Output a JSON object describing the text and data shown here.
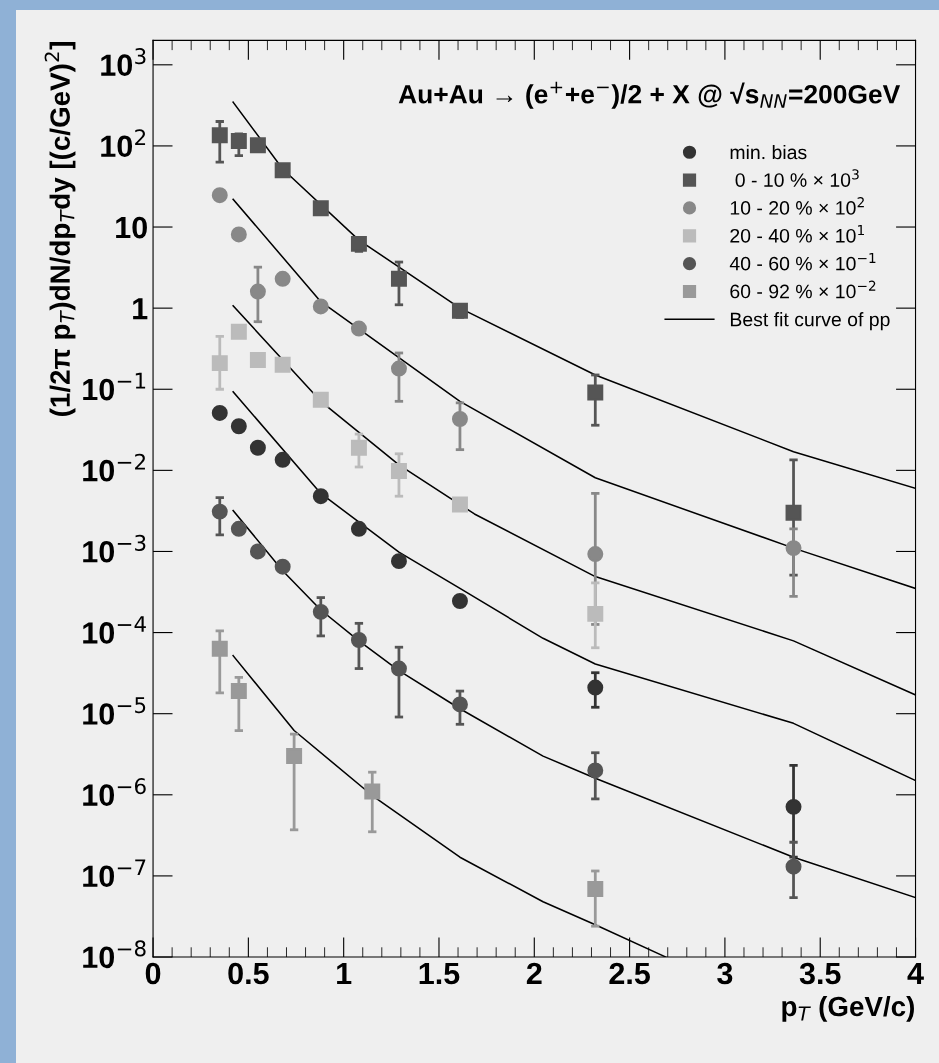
{
  "chart_data": {
    "type": "scatter",
    "title": "Au+Au → (e$^{+}$+e$^{−}$)/2 + X @ √s$_{NN}$=200GeV",
    "xlabel": "p$_{T}$ (GeV/c)",
    "ylabel": "(1/2π p$_{T}$)dN/dp$_{T}$dy [(c/GeV)$^{2}$]",
    "log": "y",
    "grid": false,
    "legend": "top right",
    "xlim": [
      0,
      4
    ],
    "xticks": [
      0,
      0.5,
      1,
      1.5,
      2,
      2.5,
      3,
      3.5,
      4
    ],
    "ylim": [
      1e-08,
      2000
    ],
    "yticks": [
      {
        "value": 1e-08,
        "label": "10$^{−8}$"
      },
      {
        "value": 1e-07,
        "label": "10$^{−7}$"
      },
      {
        "value": 1e-06,
        "label": "10$^{−6}$"
      },
      {
        "value": 1e-05,
        "label": "10$^{−5}$"
      },
      {
        "value": 0.0001,
        "label": "10$^{−4}$"
      },
      {
        "value": 0.001,
        "label": "10$^{−3}$"
      },
      {
        "value": 0.01,
        "label": "10$^{−2}$"
      },
      {
        "value": 0.1,
        "label": "10$^{−1}$"
      },
      1,
      10,
      {
        "value": 100,
        "label": "10$^{2}$"
      },
      {
        "value": 1000,
        "label": "10$^{3}$"
      }
    ],
    "series": [
      {
        "name": "min. bias",
        "color": "#333333",
        "marker": "circle",
        "x": [
          0.35,
          0.45,
          0.55,
          0.68,
          0.88,
          1.08,
          1.29,
          1.61,
          2.32,
          3.36
        ],
        "values": [
          0.051,
          0.035,
          0.019,
          0.0135,
          0.0048,
          0.0019,
          0.00076,
          0.000245,
          2.1e-05,
          7.1e-07
        ],
        "errors": [
          null,
          null,
          null,
          null,
          null,
          null,
          null,
          null,
          [
            1.2e-05,
            3.2e-05
          ],
          [
            1.7e-07,
            2.3e-06
          ]
        ]
      },
      {
        "name": " 0 - 10 % × 10$^{3}$",
        "color": "#555555",
        "marker": "square",
        "x": [
          0.35,
          0.45,
          0.55,
          0.68,
          0.88,
          1.08,
          1.29,
          1.61,
          2.32,
          3.36
        ],
        "values": [
          135,
          115,
          102,
          50,
          17,
          6.2,
          2.3,
          0.93,
          0.091,
          0.003
        ],
        "errors": [
          [
            63,
            200
          ],
          [
            76,
            141
          ],
          null,
          null,
          null,
          [
            5.0,
            7.3
          ],
          [
            1.1,
            3.7
          ],
          [
            0.77,
            1.1
          ],
          [
            0.036,
            0.15
          ],
          [
            0.00051,
            0.0135
          ]
        ]
      },
      {
        "name": "10 - 20 % × 10$^{2}$",
        "color": "#888888",
        "marker": "circle",
        "x": [
          0.35,
          0.45,
          0.55,
          0.68,
          0.88,
          1.08,
          1.29,
          1.61,
          2.32,
          3.36
        ],
        "values": [
          24.7,
          8.1,
          1.6,
          2.3,
          1.05,
          0.56,
          0.18,
          0.043,
          0.00093,
          0.0011
        ],
        "errors": [
          null,
          null,
          [
            0.68,
            3.2
          ],
          null,
          null,
          null,
          [
            0.071,
            0.28
          ],
          [
            0.018,
            0.068
          ],
          [
            0.000126,
            0.0052
          ],
          [
            0.00028,
            0.0019
          ]
        ]
      },
      {
        "name": "20 - 40 % × 10$^{1}$",
        "color": "#bbbbbb",
        "marker": "square",
        "x": [
          0.35,
          0.45,
          0.55,
          0.68,
          0.88,
          1.08,
          1.29,
          1.61,
          2.32
        ],
        "values": [
          0.21,
          0.51,
          0.23,
          0.2,
          0.074,
          0.019,
          0.0098,
          0.0038,
          0.00017
        ],
        "errors": [
          [
            0.1,
            0.45
          ],
          null,
          null,
          null,
          null,
          [
            0.011,
            0.028
          ],
          [
            0.0048,
            0.016
          ],
          null,
          [
            6.5e-05,
            0.00041
          ]
        ]
      },
      {
        "name": "40 - 60 % × 10$^{−1}$",
        "color": "#555555",
        "marker": "circle",
        "x": [
          0.35,
          0.45,
          0.55,
          0.68,
          0.88,
          1.08,
          1.29,
          1.61,
          2.32,
          3.36
        ],
        "values": [
          0.0031,
          0.0019,
          0.001,
          0.00065,
          0.00018,
          8.1e-05,
          3.6e-05,
          1.3e-05,
          2e-06,
          1.3e-07
        ],
        "errors": [
          [
            0.0016,
            0.0046
          ],
          null,
          null,
          null,
          [
            9.1e-05,
            0.00027
          ],
          [
            3.6e-05,
            0.00013
          ],
          [
            9.1e-06,
            6.6e-05
          ],
          [
            7.4e-06,
            1.9e-05
          ],
          [
            8.9e-07,
            3.3e-06
          ],
          [
            5.4e-08,
            2.6e-07
          ]
        ]
      },
      {
        "name": "60 - 92 % × 10$^{−2}$",
        "color": "#999999",
        "marker": "square",
        "x": [
          0.35,
          0.45,
          0.74,
          1.15,
          2.32
        ],
        "values": [
          6.3e-05,
          1.9e-05,
          3e-06,
          1.1e-06,
          6.9e-08
        ],
        "errors": [
          [
            1.8e-05,
            0.000105
          ],
          [
            6.2e-06,
            2.8e-05
          ],
          [
            3.7e-07,
            5.6e-06
          ],
          [
            3.5e-07,
            1.9e-06
          ],
          [
            2.4e-08,
            1.15e-07
          ]
        ]
      },
      {
        "name": "Best fit curve of pp",
        "type": "line",
        "color": "#000000",
        "marker": "none",
        "x": [
          0.42,
          0.68,
          1.08,
          1.61,
          2.32,
          3.36,
          4.0
        ],
        "values": [
          347,
          52,
          6.9,
          1.0,
          0.15,
          0.017,
          0.006
        ]
      },
      {
        "type": "line",
        "color": "#000000",
        "marker": "none",
        "x": [
          0.42,
          0.88,
          1.61,
          2.32,
          3.36,
          4.0
        ],
        "values": [
          22,
          1.2,
          0.071,
          0.0081,
          0.0011,
          0.00035
        ]
      },
      {
        "type": "line",
        "color": "#000000",
        "marker": "none",
        "x": [
          0.42,
          0.88,
          1.29,
          1.686,
          2.32,
          3.36,
          4.0
        ],
        "values": [
          1.07,
          0.071,
          0.0117,
          0.0029,
          0.00049,
          7.9e-05,
          1.7e-05
        ]
      },
      {
        "type": "line",
        "color": "#000000",
        "marker": "none",
        "x": [
          0.42,
          0.88,
          1.29,
          1.61,
          2.046,
          2.32,
          3.36,
          4.0
        ],
        "values": [
          0.093,
          0.0052,
          0.00098,
          0.00035,
          8.5e-05,
          4.1e-05,
          7.6e-06,
          1.5e-06
        ]
      },
      {
        "type": "line",
        "color": "#000000",
        "marker": "none",
        "x": [
          0.42,
          0.68,
          0.88,
          1.08,
          1.29,
          1.61,
          2.046,
          2.32,
          3.36,
          4.0
        ],
        "values": [
          0.0032,
          0.00058,
          0.00019,
          7.9e-05,
          3.4e-05,
          1.15e-05,
          3e-06,
          1.6e-06,
          1.7e-07,
          5.4e-08
        ]
      },
      {
        "type": "line",
        "color": "#000000",
        "marker": "none",
        "x": [
          0.42,
          0.74,
          1.15,
          1.61,
          2.046,
          2.32,
          2.69
        ],
        "values": [
          5.2e-05,
          6.2e-06,
          9.8e-07,
          1.7e-07,
          4.8e-08,
          2.5e-08,
          1e-08
        ]
      }
    ]
  }
}
